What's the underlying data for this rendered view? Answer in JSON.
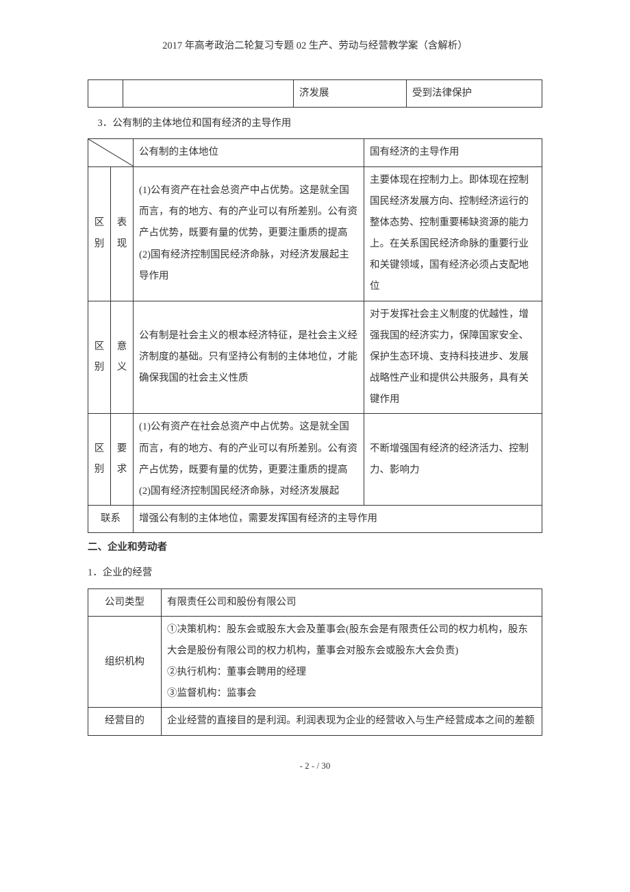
{
  "header": {
    "title": "2017 年高考政治二轮复习专题 02 生产、劳动与经营教学案（含解析）"
  },
  "topFragment": {
    "col3": "济发展",
    "col4": "受到法律保护"
  },
  "section3": {
    "label": "3．公有制的主体地位和国有经济的主导作用"
  },
  "table1": {
    "head": {
      "col2": "公有制的主体地位",
      "col3": "国有经济的主导作用"
    },
    "rowA": {
      "g": "区别",
      "sub": "表现",
      "c2": "(1)公有资产在社会总资产中占优势。这是就全国而言，有的地方、有的产业可以有所差别。公有资产占优势，既要有量的优势，更要注重质的提高\n(2)国有经济控制国民经济命脉，对经济发展起主导作用",
      "c3": "主要体现在控制力上。即体现在控制国民经济发展方向、控制经济运行的整体态势、控制重要稀缺资源的能力上。在关系国民经济命脉的重要行业和关键领域，国有经济必须占支配地位"
    },
    "rowB": {
      "g": "区别",
      "sub": "意义",
      "c2": "公有制是社会主义的根本经济特征，是社会主义经济制度的基础。只有坚持公有制的主体地位，才能确保我国的社会主义性质",
      "c3": "对于发挥社会主义制度的优越性，增强我国的经济实力，保障国家安全、保护生态环境、支持科技进步、发展战略性产业和提供公共服务，具有关键作用"
    },
    "rowC": {
      "g": "区别",
      "sub": "要求",
      "c2": "(1)公有资产在社会总资产中占优势。这是就全国而言，有的地方、有的产业可以有所差别。公有资产占优势，既要有量的优势，更要注重质的提高\n(2)国有经济控制国民经济命脉，对经济发展起",
      "c3": "不断增强国有经济的经济活力、控制力、影响力"
    },
    "rowD": {
      "g": "联系",
      "c": "增强公有制的主体地位，需要发挥国有经济的主导作用"
    }
  },
  "section2": {
    "head": "二、企业和劳动者",
    "sub": "1．企业的经营"
  },
  "table2": {
    "r1": {
      "h": "公司类型",
      "v": "有限责任公司和股份有限公司"
    },
    "r2": {
      "h": "组织机构",
      "v": "①决策机构：股东会或股东大会及董事会(股东会是有限责任公司的权力机构，股东大会是股份有限公司的权力机构，董事会对股东会或股东大会负责)\n②执行机构：董事会聘用的经理\n③监督机构：监事会"
    },
    "r3": {
      "h": "经营目的",
      "v": "企业经营的直接目的是利润。利润表现为企业的经营收入与生产经营成本之间的差额"
    }
  },
  "footer": {
    "page": "- 2 -",
    "total": "/ 30"
  }
}
